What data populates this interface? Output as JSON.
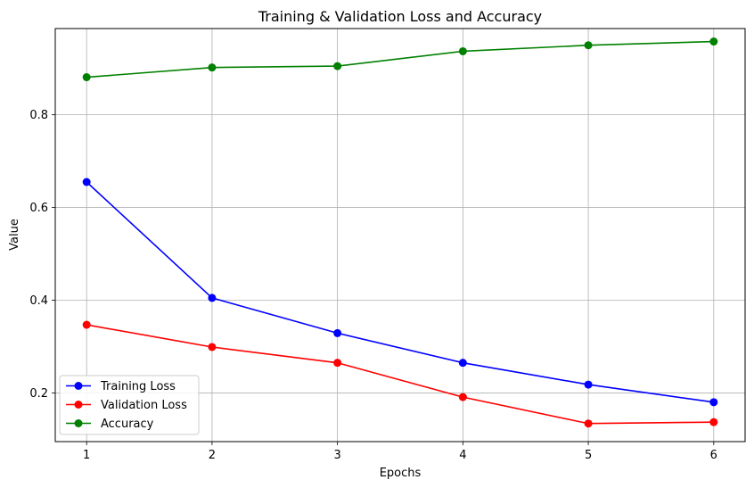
{
  "chart_data": {
    "type": "line",
    "title": "Training & Validation Loss and Accuracy",
    "xlabel": "Epochs",
    "ylabel": "Value",
    "x": [
      1,
      2,
      3,
      4,
      5,
      6
    ],
    "xlim": [
      0.75,
      6.25
    ],
    "ylim": [
      0.095,
      0.986
    ],
    "xticks": [
      "1",
      "2",
      "3",
      "4",
      "5",
      "6"
    ],
    "yticks": [
      {
        "value": 0.2,
        "label": "0.2"
      },
      {
        "value": 0.4,
        "label": "0.4"
      },
      {
        "value": 0.6,
        "label": "0.6"
      },
      {
        "value": 0.8,
        "label": "0.8"
      }
    ],
    "grid": true,
    "legend_position": "lower-left",
    "series": [
      {
        "name": "Training Loss",
        "color": "#0000ff",
        "values": [
          0.655,
          0.405,
          0.329,
          0.265,
          0.218,
          0.18
        ]
      },
      {
        "name": "Validation Loss",
        "color": "#ff0000",
        "values": [
          0.347,
          0.299,
          0.265,
          0.191,
          0.134,
          0.137
        ]
      },
      {
        "name": "Accuracy",
        "color": "#008000",
        "values": [
          0.881,
          0.902,
          0.905,
          0.937,
          0.95,
          0.958
        ]
      }
    ]
  }
}
